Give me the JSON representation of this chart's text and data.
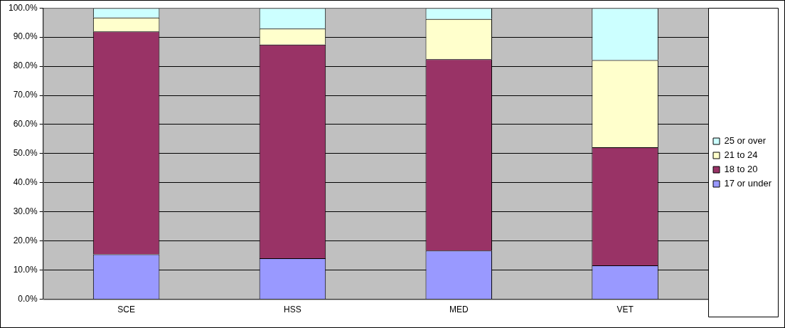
{
  "chart_data": {
    "type": "bar",
    "stacked": true,
    "categories": [
      "SCE",
      "HSS",
      "MED",
      "VET"
    ],
    "series": [
      {
        "name": "17 or under",
        "color": "#9999ff",
        "values": [
          15.4,
          14.1,
          16.7,
          11.6
        ]
      },
      {
        "name": "18 to 20",
        "color": "#993366",
        "values": [
          76.5,
          73.3,
          65.7,
          40.6
        ]
      },
      {
        "name": "21 to 24",
        "color": "#ffffcc",
        "values": [
          4.8,
          5.5,
          13.8,
          29.9
        ]
      },
      {
        "name": "25 or over",
        "color": "#ccffff",
        "values": [
          3.3,
          7.1,
          3.8,
          17.9
        ]
      }
    ],
    "ylim": [
      0,
      100
    ],
    "yticks": [
      {
        "value": 0,
        "label": "0.0%"
      },
      {
        "value": 10,
        "label": "10.0%"
      },
      {
        "value": 20,
        "label": "20.0%"
      },
      {
        "value": 30,
        "label": "30.0%"
      },
      {
        "value": 40,
        "label": "40.0%"
      },
      {
        "value": 50,
        "label": "50.0%"
      },
      {
        "value": 60,
        "label": "60.0%"
      },
      {
        "value": 70,
        "label": "70.0%"
      },
      {
        "value": 80,
        "label": "80.0%"
      },
      {
        "value": 90,
        "label": "90.0%"
      },
      {
        "value": 100,
        "label": "100.0%"
      }
    ],
    "grid": "y",
    "legend": "right"
  }
}
